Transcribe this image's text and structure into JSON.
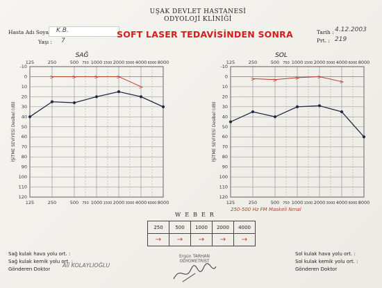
{
  "header": {
    "hospital": "UŞAK DEVLET HASTANESİ",
    "clinic": "ODYOLOJİ KLİNİĞİ",
    "headline": "SOFT LASER TEDAVİSİNDEN SONRA",
    "date_label": "Tarih :",
    "date_value": "4.12.2003",
    "protocol_label": "Prt. :",
    "protocol_value": "219"
  },
  "patient": {
    "name_label": "Hasta Adı Soyadı",
    "name_value": "K.B.",
    "age_label": "Yaşı :",
    "age_value": "7"
  },
  "colors": {
    "bone": "#c0392b",
    "air": "#1f2a44",
    "grid": "#888888"
  },
  "chart_data": [
    {
      "type": "line",
      "title": "SAĞ",
      "ylabel": "İŞİTME SEVİYESİ Desibel (dB)",
      "x_top": [
        "125",
        "250",
        "500",
        "750",
        "1000",
        "1500",
        "2000",
        "3000",
        "4000",
        "6000",
        "8000"
      ],
      "x_bottom": [
        "125",
        "250",
        "500",
        "750",
        "1000",
        "1500",
        "2000",
        "3000",
        "4000",
        "6000",
        "8000"
      ],
      "yticks": [
        -10,
        0,
        10,
        20,
        30,
        40,
        50,
        60,
        70,
        80,
        90,
        100,
        110,
        120
      ],
      "ylim": [
        -10,
        120
      ],
      "series": [
        {
          "type": "bone",
          "x": [
            "250",
            "500",
            "1000",
            "2000",
            "4000"
          ],
          "values": [
            0,
            0,
            0,
            0,
            10
          ]
        },
        {
          "type": "air",
          "x": [
            "125",
            "250",
            "500",
            "1000",
            "2000",
            "4000",
            "8000"
          ],
          "values": [
            40,
            25,
            26,
            20,
            15,
            20,
            30
          ]
        }
      ]
    },
    {
      "type": "line",
      "title": "SOL",
      "ylabel": "İŞİTME SEVİYESİ Desibel (dB)",
      "x_top": [
        "125",
        "250",
        "500",
        "750",
        "1000",
        "1500",
        "2000",
        "3000",
        "4000",
        "6000",
        "8000"
      ],
      "x_bottom": [
        "125",
        "250",
        "500",
        "750",
        "1000",
        "1500",
        "2000",
        "3000",
        "4000",
        "6000",
        "8000"
      ],
      "yticks": [
        -10,
        0,
        10,
        20,
        30,
        40,
        50,
        60,
        70,
        80,
        90,
        100,
        110,
        120
      ],
      "ylim": [
        -10,
        120
      ],
      "series": [
        {
          "type": "bone",
          "x": [
            "250",
            "500",
            "1000",
            "2000",
            "4000"
          ],
          "values": [
            2,
            3,
            1,
            0,
            5
          ]
        },
        {
          "type": "air",
          "x": [
            "125",
            "250",
            "500",
            "1000",
            "2000",
            "4000",
            "8000"
          ],
          "values": [
            45,
            35,
            40,
            30,
            29,
            35,
            60
          ]
        }
      ]
    }
  ],
  "weber": {
    "title": "WEBER",
    "frequencies": [
      "250",
      "500",
      "1000",
      "2000",
      "4000"
    ]
  },
  "notes": {
    "right_chart": "250-500 Hz FM Maskeli Nmal"
  },
  "footer": {
    "right_air": "Sağ kulak hava yolu ort. :",
    "right_bone": "Sağ kulak kemik yolu ort. :",
    "left_air": "Sol kulak hava yolu ort. :",
    "left_bone": "Sol kulak kemik yolu ort. :",
    "referring_doctor": "Gönderen Doktor",
    "referring_doctor_value": "Ali KOLAYLIOĞLU",
    "stamp_name": "Ergün TARHAN",
    "stamp_title": "ODYOMETRİST"
  }
}
